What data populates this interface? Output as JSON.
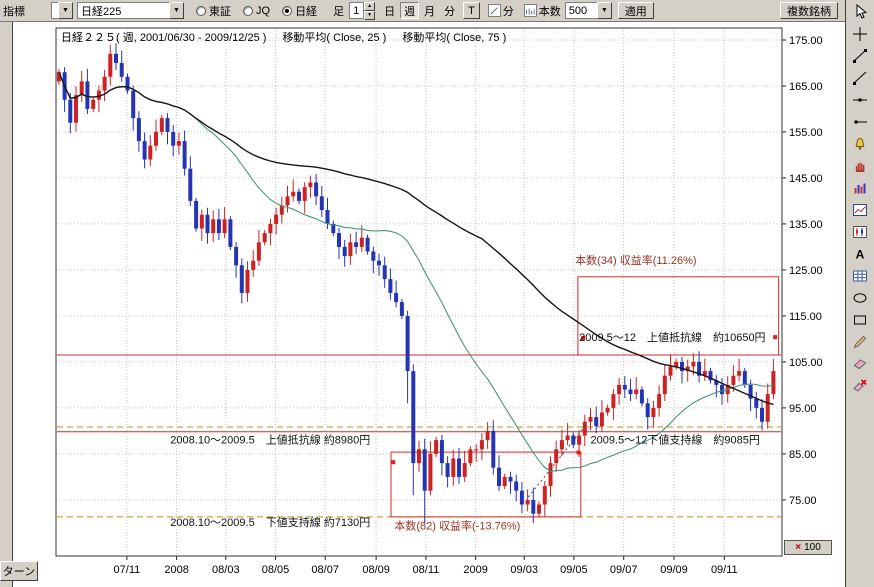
{
  "window": {
    "bottom_left_button": "ターン"
  },
  "toolbar": {
    "indicator_label": "指標",
    "mini_select_value": "",
    "symbol_select": {
      "value": "日経225"
    },
    "exchange_radios": [
      {
        "label": "東証",
        "selected": false
      },
      {
        "label": "JQ",
        "selected": false
      },
      {
        "label": "日経",
        "selected": true
      }
    ],
    "bar_label": "足",
    "interval_value": "1",
    "period_buttons": [
      {
        "label": "日",
        "active": false
      },
      {
        "label": "週",
        "active": true
      },
      {
        "label": "月",
        "active": false
      },
      {
        "label": "分",
        "active": false
      }
    ],
    "tick_button": "T",
    "minute_label": "分",
    "count_label": "本数",
    "count_value": "500",
    "apply_button": "適用",
    "multi_symbol_button": "複数銘柄"
  },
  "chart": {
    "title": "日経２２５( 週, 2001/06/30 - 2009/12/25 )",
    "ma1_label": "移動平均( Close, 25 )",
    "ma2_label": "移動平均( Close, 75 )",
    "multiplier_sign": "×",
    "multiplier_value": "100"
  },
  "colors": {
    "up": "#cc2222",
    "down": "#2434b2",
    "grid": "#c6c6c6",
    "frame": "#333333",
    "box": "#cc2b2b",
    "dot": "#dd2020",
    "trend": "#444444",
    "measure": "#993322"
  },
  "drawing_tools": [
    {
      "name": "cursor"
    },
    {
      "name": "crosshair"
    },
    {
      "name": "trend-line"
    },
    {
      "name": "ray-line"
    },
    {
      "name": "horizontal-line"
    },
    {
      "name": "half-line"
    },
    {
      "name": "alert-bell"
    },
    {
      "name": "hand"
    },
    {
      "name": "volume-bars"
    },
    {
      "name": "mini-chart"
    },
    {
      "name": "candle-pattern"
    },
    {
      "name": "text"
    },
    {
      "name": "grid"
    },
    {
      "name": "ellipse"
    },
    {
      "name": "rectangle"
    },
    {
      "name": "pencil"
    },
    {
      "name": "eraser"
    },
    {
      "name": "eraser-all"
    }
  ],
  "chart_data": {
    "type": "candlestick",
    "symbol": "日経225",
    "timeframe": "週",
    "range_label": "2001/06/30 - 2009/12/25",
    "value_unit_multiplier": 100,
    "weeks_total": 127,
    "y_range": [
      62.8,
      177.6
    ],
    "y_ticks": [
      {
        "value": 175,
        "label": "175.00"
      },
      {
        "value": 165,
        "label": "165.00"
      },
      {
        "value": 155,
        "label": "155.00"
      },
      {
        "value": 145,
        "label": "145.00"
      },
      {
        "value": 135,
        "label": "135.00"
      },
      {
        "value": 125,
        "label": "125.00"
      },
      {
        "value": 115,
        "label": "115.00"
      },
      {
        "value": 105,
        "label": "105.00"
      },
      {
        "value": 95,
        "label": "95.00"
      },
      {
        "value": 85,
        "label": "85.00"
      },
      {
        "value": 75,
        "label": "75.00"
      }
    ],
    "x_ticks": [
      {
        "label": "07/11",
        "week": 12.4
      },
      {
        "label": "2008",
        "week": 21.1
      },
      {
        "label": "08/03",
        "week": 29.7
      },
      {
        "label": "08/05",
        "week": 38.4
      },
      {
        "label": "08/07",
        "week": 47.1
      },
      {
        "label": "08/09",
        "week": 56.0
      },
      {
        "label": "08/11",
        "week": 64.7
      },
      {
        "label": "2009",
        "week": 73.4
      },
      {
        "label": "09/03",
        "week": 81.9
      },
      {
        "label": "09/05",
        "week": 90.6
      },
      {
        "label": "09/07",
        "week": 99.3
      },
      {
        "label": "09/09",
        "week": 108.1
      },
      {
        "label": "09/11",
        "week": 116.9
      }
    ],
    "first_open": 166,
    "closes": [
      168,
      162,
      157,
      163,
      166,
      160,
      162,
      164,
      167,
      172,
      170,
      167,
      164,
      158,
      153,
      149,
      152,
      155,
      158,
      155,
      152,
      153,
      147,
      140,
      134,
      137,
      133,
      136,
      133,
      136,
      130,
      126,
      120,
      125,
      127,
      131,
      133,
      135,
      137,
      139,
      141,
      142,
      140,
      143,
      144,
      141,
      138,
      135,
      133,
      130,
      128,
      131,
      130,
      132,
      129,
      127,
      126,
      123,
      120,
      118,
      115,
      103,
      83,
      86,
      77,
      85,
      88,
      83,
      80,
      84,
      80,
      83,
      86,
      86,
      88,
      90,
      82,
      78,
      80,
      79,
      77,
      74,
      75,
      72,
      74,
      78,
      83,
      86,
      88,
      89,
      87,
      89,
      92,
      93,
      91,
      94,
      95,
      98,
      100,
      99,
      98,
      99,
      96,
      93,
      95,
      98,
      102,
      104,
      105,
      103,
      104,
      105,
      102,
      103,
      101,
      100,
      98,
      100,
      102,
      103,
      100,
      97,
      95,
      92,
      98,
      103
    ],
    "wick_overrides": {
      "9": [
        174,
        null
      ],
      "61": [
        null,
        96
      ],
      "62": [
        null,
        76
      ],
      "64": [
        null,
        70
      ],
      "65": [
        null,
        76
      ],
      "83": [
        null,
        70
      ]
    },
    "moving_averages": [
      {
        "period": 25,
        "color": "#46957f",
        "width": 1.1
      },
      {
        "period": 75,
        "color": "#151515",
        "width": 1.4
      }
    ],
    "levels": [
      {
        "kind": "resistance",
        "value": 106.5,
        "color": "#cc2b2b",
        "dash": "",
        "label": "2009.5～12　上値抵抗線　約10650円",
        "label_week": 91.5,
        "label_v": 109.6
      },
      {
        "kind": "resistance",
        "value": 89.8,
        "color": "#cc2b2b",
        "dash": "",
        "label": "2008.10～2009.5　上値抵抗線 約8980円",
        "label_week": 20.0,
        "label_v": 87.3
      },
      {
        "kind": "support",
        "value": 90.85,
        "color": "#b39700",
        "dash": "6 4",
        "label": "2009.5～12下値支持線　約9085円",
        "label_week": 93.5,
        "label_v": 87.3
      },
      {
        "kind": "support",
        "value": 71.3,
        "color": "#b39700",
        "dash": "6 4",
        "label": "2008.10～2009.5　下値支持線 約7130円",
        "label_week": 20.0,
        "label_v": 69.3
      }
    ],
    "measurements": [
      {
        "label": "本数(34) 収益率(11.26%)",
        "week_from": 91.3,
        "week_to": 126.4,
        "v_from": 123.5,
        "v_to": 106.5,
        "label_week": 90.8,
        "label_v": 126.3,
        "dots": [
          [
            92.2,
            110.2
          ],
          [
            125.8,
            110.4
          ]
        ]
      },
      {
        "label": "本数(82) 収益率(-13.76%)",
        "week_from": 58.6,
        "week_to": 91.8,
        "v_from": 85.4,
        "v_to": 71.3,
        "label_week": 59.2,
        "label_v": 68.6,
        "dots": [
          [
            59.0,
            83.2
          ],
          [
            91.4,
            85.3
          ]
        ]
      }
    ],
    "trend_segment": {
      "from": [
        82.6,
        75.6
      ],
      "to": [
        92.7,
        91.3
      ]
    }
  }
}
